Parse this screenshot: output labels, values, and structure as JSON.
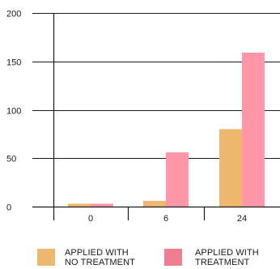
{
  "chart_data": {
    "type": "bar",
    "title": "",
    "xlabel": "",
    "ylabel": "",
    "categories": [
      "0",
      "6",
      "24"
    ],
    "ylim": [
      0,
      200
    ],
    "yticks": [
      0,
      50,
      100,
      150,
      200
    ],
    "grid": "horizontal",
    "legend_position": "bottom",
    "series": [
      {
        "name": "APPLIED WITH NO TREATMENT",
        "legend_lines": [
          "APPLIED WITH",
          "NO TREATMENT"
        ],
        "color": "#F0B86E",
        "values": [
          3,
          6,
          80
        ]
      },
      {
        "name": "APPLIED WITH TREATMENT",
        "legend_lines": [
          "APPLIED WITH",
          "TREATMENT"
        ],
        "color": "#FF97A8",
        "legend_color": "#F07E91",
        "values": [
          3,
          56,
          159
        ]
      }
    ]
  }
}
